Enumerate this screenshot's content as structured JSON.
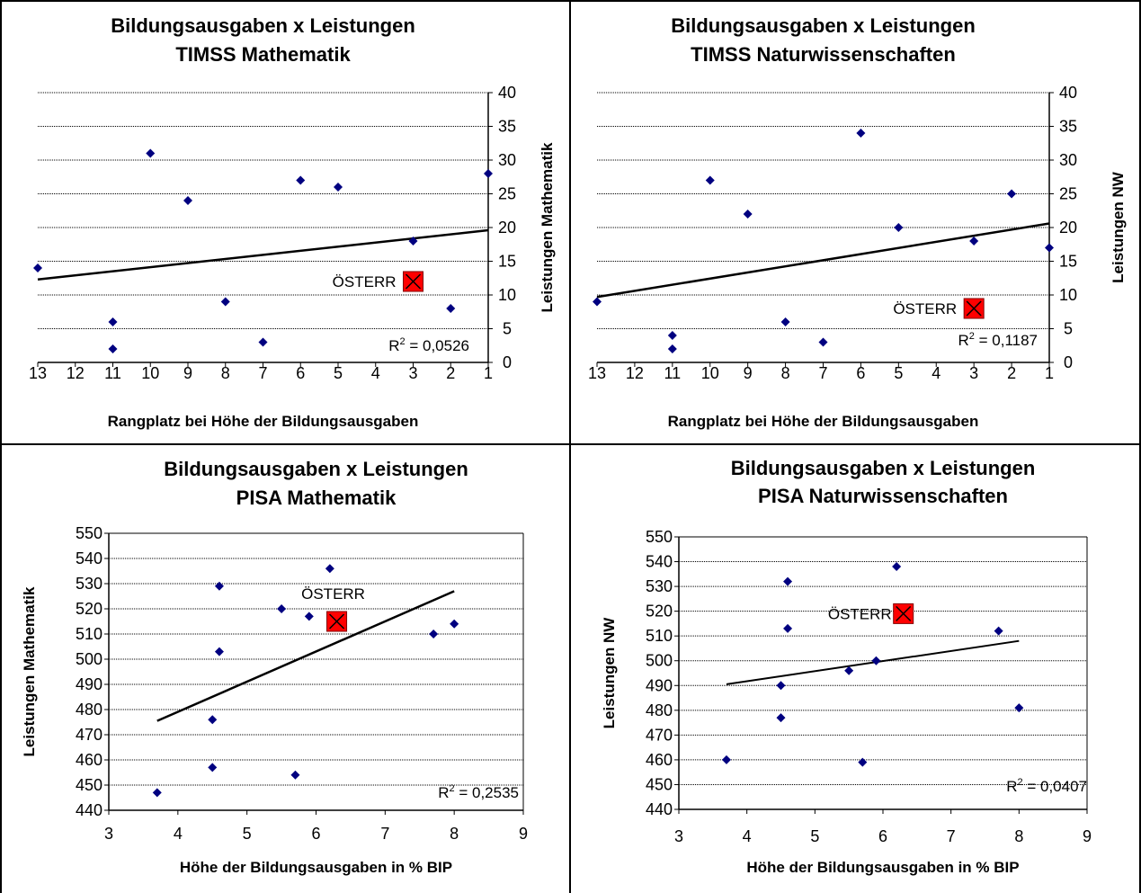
{
  "chart_data": [
    {
      "type": "scatter",
      "title_lines": [
        "Bildungsausgaben x Leistungen",
        "TIMSS Mathematik"
      ],
      "xlabel": "Rangplatz bei Höhe der Bildungsausgaben",
      "ylabel": "Leistungen Mathematik",
      "xlim": [
        13,
        1
      ],
      "x_reversed": true,
      "xticks": [
        "13",
        "12",
        "11",
        "10",
        "9",
        "8",
        "7",
        "6",
        "5",
        "4",
        "3",
        "2",
        "1"
      ],
      "ylim": [
        0,
        40
      ],
      "yticks": [
        "0",
        "5",
        "10",
        "15",
        "20",
        "25",
        "30",
        "35",
        "40"
      ],
      "y_axis_side": "right",
      "grid": true,
      "points": [
        {
          "x": 13,
          "y": 14
        },
        {
          "x": 11,
          "y": 6
        },
        {
          "x": 11,
          "y": 2
        },
        {
          "x": 10,
          "y": 31
        },
        {
          "x": 9,
          "y": 24
        },
        {
          "x": 8,
          "y": 9
        },
        {
          "x": 7,
          "y": 3
        },
        {
          "x": 6,
          "y": 27
        },
        {
          "x": 5,
          "y": 26
        },
        {
          "x": 3,
          "y": 18
        },
        {
          "x": 2,
          "y": 8
        },
        {
          "x": 1,
          "y": 28
        }
      ],
      "trendline": {
        "x1": 13,
        "y1": 12.3,
        "x2": 1,
        "y2": 19.6
      },
      "highlight": {
        "x": 3,
        "y": 12,
        "label": "ÖSTERR",
        "label_side": "left"
      },
      "r2_label": "= 0,0526",
      "accent_colors": {
        "points": "#000080",
        "highlight": "#ff0000"
      }
    },
    {
      "type": "scatter",
      "title_lines": [
        "Bildungsausgaben x Leistungen",
        "TIMSS Naturwissenschaften"
      ],
      "xlabel": "Rangplatz bei Höhe der Bildungsausgaben",
      "ylabel": "Leistungen NW",
      "xlim": [
        13,
        1
      ],
      "x_reversed": true,
      "xticks": [
        "13",
        "12",
        "11",
        "10",
        "9",
        "8",
        "7",
        "6",
        "5",
        "4",
        "3",
        "2",
        "1"
      ],
      "ylim": [
        0,
        40
      ],
      "yticks": [
        "0",
        "5",
        "10",
        "15",
        "20",
        "25",
        "30",
        "35",
        "40"
      ],
      "y_axis_side": "right",
      "grid": true,
      "points": [
        {
          "x": 13,
          "y": 9
        },
        {
          "x": 11,
          "y": 4
        },
        {
          "x": 11,
          "y": 2
        },
        {
          "x": 10,
          "y": 27
        },
        {
          "x": 9,
          "y": 22
        },
        {
          "x": 8,
          "y": 6
        },
        {
          "x": 7,
          "y": 3
        },
        {
          "x": 6,
          "y": 34
        },
        {
          "x": 5,
          "y": 20
        },
        {
          "x": 3,
          "y": 18
        },
        {
          "x": 2,
          "y": 25
        },
        {
          "x": 1,
          "y": 17
        }
      ],
      "trendline": {
        "x1": 13,
        "y1": 9.7,
        "x2": 1,
        "y2": 20.6
      },
      "highlight": {
        "x": 3,
        "y": 8,
        "label": "ÖSTERR",
        "label_side": "left"
      },
      "r2_label": "= 0,1187",
      "accent_colors": {
        "points": "#000080",
        "highlight": "#ff0000"
      }
    },
    {
      "type": "scatter",
      "title_lines": [
        "Bildungsausgaben x Leistungen",
        "PISA Mathematik"
      ],
      "xlabel": "Höhe der Bildungsausgaben in % BIP",
      "ylabel": "Leistungen Mathematik",
      "xlim": [
        3,
        9
      ],
      "xticks": [
        "3",
        "4",
        "5",
        "6",
        "7",
        "8",
        "9"
      ],
      "ylim": [
        440,
        550
      ],
      "yticks": [
        "440",
        "450",
        "460",
        "470",
        "480",
        "490",
        "500",
        "510",
        "520",
        "530",
        "540",
        "550"
      ],
      "y_axis_side": "left",
      "grid": true,
      "points": [
        {
          "x": 3.7,
          "y": 447
        },
        {
          "x": 4.5,
          "y": 457
        },
        {
          "x": 4.5,
          "y": 476
        },
        {
          "x": 4.6,
          "y": 503
        },
        {
          "x": 4.6,
          "y": 529
        },
        {
          "x": 5.5,
          "y": 520
        },
        {
          "x": 5.7,
          "y": 454
        },
        {
          "x": 5.9,
          "y": 517
        },
        {
          "x": 6.2,
          "y": 536
        },
        {
          "x": 7.7,
          "y": 510
        },
        {
          "x": 8.0,
          "y": 514
        }
      ],
      "trendline": {
        "x1": 3.7,
        "y1": 475.5,
        "x2": 8.0,
        "y2": 527
      },
      "highlight": {
        "x": 6.3,
        "y": 515,
        "label": "ÖSTERR",
        "label_side": "above"
      },
      "r2_label": "= 0,2535",
      "accent_colors": {
        "points": "#000080",
        "highlight": "#ff0000"
      }
    },
    {
      "type": "scatter",
      "title_lines": [
        "Bildungsausgaben x Leistungen",
        "PISA Naturwissenschaften"
      ],
      "xlabel": "Höhe der Bildungsausgaben in % BIP",
      "ylabel": "Leistungen NW",
      "xlim": [
        3,
        9
      ],
      "xticks": [
        "3",
        "4",
        "5",
        "6",
        "7",
        "8",
        "9"
      ],
      "ylim": [
        440,
        550
      ],
      "yticks": [
        "440",
        "450",
        "460",
        "470",
        "480",
        "490",
        "500",
        "510",
        "520",
        "530",
        "540",
        "550"
      ],
      "y_axis_side": "left",
      "grid": true,
      "points": [
        {
          "x": 3.7,
          "y": 460
        },
        {
          "x": 4.5,
          "y": 477
        },
        {
          "x": 4.5,
          "y": 490
        },
        {
          "x": 4.6,
          "y": 513
        },
        {
          "x": 4.6,
          "y": 532
        },
        {
          "x": 5.5,
          "y": 496
        },
        {
          "x": 5.7,
          "y": 459
        },
        {
          "x": 5.9,
          "y": 500
        },
        {
          "x": 6.2,
          "y": 538
        },
        {
          "x": 7.7,
          "y": 512
        },
        {
          "x": 8.0,
          "y": 481
        }
      ],
      "trendline": {
        "x1": 3.7,
        "y1": 490.5,
        "x2": 8.0,
        "y2": 508
      },
      "highlight": {
        "x": 6.3,
        "y": 519,
        "label": "ÖSTERR",
        "label_side": "left"
      },
      "r2_label": "= 0,0407",
      "accent_colors": {
        "points": "#000080",
        "highlight": "#ff0000"
      }
    }
  ]
}
